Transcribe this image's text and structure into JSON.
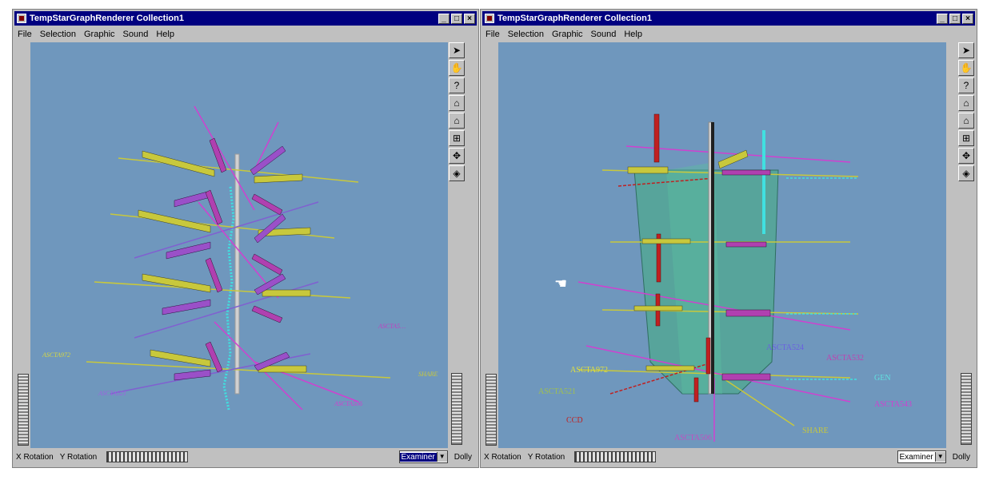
{
  "left_window": {
    "title": "TempStarGraphRenderer Collection1",
    "menu": [
      "File",
      "Selection",
      "Graphic",
      "Sound",
      "Help"
    ],
    "status": {
      "x_rotation": "X Rotation",
      "y_rotation": "Y Rotation",
      "mode": "Examiner",
      "dolly": "Dolly"
    },
    "labels": [
      "ASCTA972",
      "ASCTA521",
      "ASCTA506",
      "SHARE",
      "ASCTA5…"
    ]
  },
  "right_window": {
    "title": "TempStarGraphRenderer Collection1",
    "menu": [
      "File",
      "Selection",
      "Graphic",
      "Sound",
      "Help"
    ],
    "status": {
      "x_rotation": "X Rotation",
      "y_rotation": "Y Rotation",
      "mode": "Examiner",
      "dolly": "Dolly"
    },
    "labels": {
      "a": "ASCTA524",
      "b": "ASCTA532",
      "c": "GEN",
      "d": "ASCTA543",
      "e": "SHARE",
      "f": "ASCTA972",
      "g": "ASCTA521",
      "h": "CCD",
      "i": "ASCTA506"
    }
  },
  "colors": {
    "viewport": "#6f97bd",
    "yellow": "#c8c83c",
    "magenta": "#b040b0",
    "cyan": "#40e0e0",
    "red": "#c02020"
  }
}
